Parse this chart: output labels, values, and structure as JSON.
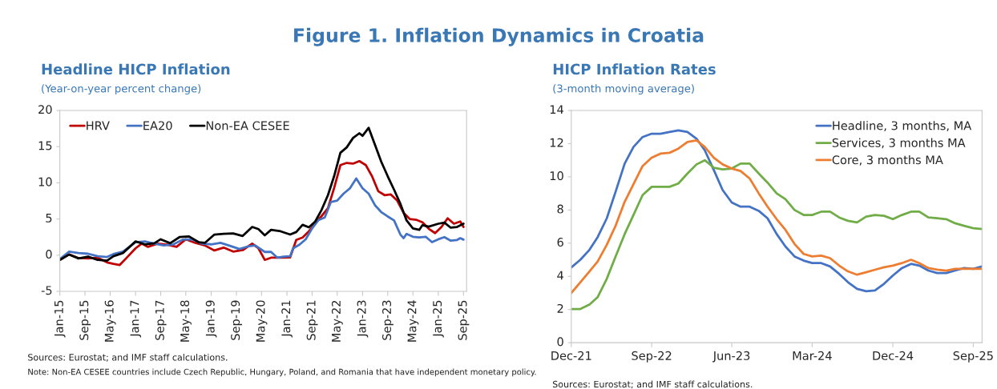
{
  "chart_data": [
    {
      "type": "other",
      "title": "Figure 1. Inflation Dynamics in Croatia"
    },
    {
      "type": "line",
      "title": "Headline HICP Inflation",
      "subtitle": "(Year-on-year percent change)",
      "ylim": [
        -5,
        20
      ],
      "yticks": [
        -5,
        0,
        5,
        10,
        15,
        20
      ],
      "xlim": [
        "2015-01",
        "2025-10"
      ],
      "xticks": [
        {
          "value": "2015-01",
          "label": "Jan-15"
        },
        {
          "value": "2015-09",
          "label": "Sep-15"
        },
        {
          "value": "2016-05",
          "label": "May-16"
        },
        {
          "value": "2017-01",
          "label": "Jan-17"
        },
        {
          "value": "2017-09",
          "label": "Sep-17"
        },
        {
          "value": "2018-05",
          "label": "May-18"
        },
        {
          "value": "2019-01",
          "label": "Jan-19"
        },
        {
          "value": "2019-09",
          "label": "Sep-19"
        },
        {
          "value": "2020-05",
          "label": "May-20"
        },
        {
          "value": "2021-01",
          "label": "Jan-21"
        },
        {
          "value": "2021-09",
          "label": "Sep-21"
        },
        {
          "value": "2022-05",
          "label": "May-22"
        },
        {
          "value": "2023-01",
          "label": "Jan-23"
        },
        {
          "value": "2023-09",
          "label": "Sep-23"
        },
        {
          "value": "2024-05",
          "label": "May-24"
        },
        {
          "value": "2025-01",
          "label": "Jan-25"
        },
        {
          "value": "2025-09",
          "label": "Sep-25"
        }
      ],
      "legend": "top left",
      "grid": false,
      "series": [
        {
          "name": "HRV",
          "color": "#c00000",
          "x": [
            "2015-01",
            "2015-04",
            "2015-07",
            "2015-10",
            "2016-01",
            "2016-04",
            "2016-06",
            "2016-08",
            "2016-10",
            "2017-01",
            "2017-03",
            "2017-05",
            "2017-08",
            "2017-11",
            "2018-02",
            "2018-05",
            "2018-08",
            "2018-11",
            "2019-02",
            "2019-05",
            "2019-08",
            "2019-11",
            "2020-02",
            "2020-04",
            "2020-06",
            "2020-08",
            "2020-11",
            "2021-02",
            "2021-04",
            "2021-06",
            "2021-08",
            "2021-10",
            "2021-12",
            "2022-02",
            "2022-04",
            "2022-06",
            "2022-08",
            "2022-10",
            "2022-12",
            "2023-02",
            "2023-04",
            "2023-06",
            "2023-08",
            "2023-10",
            "2023-12",
            "2024-02",
            "2024-04",
            "2024-06",
            "2024-08",
            "2024-10",
            "2024-12",
            "2025-02",
            "2025-04",
            "2025-06",
            "2025-08",
            "2025-09"
          ],
          "values": [
            -0.65,
            0.1,
            -0.4,
            -0.45,
            -0.35,
            -1.0,
            -1.2,
            -1.35,
            -0.45,
            0.95,
            1.6,
            1.15,
            1.6,
            1.45,
            1.15,
            2.2,
            1.7,
            1.35,
            0.65,
            1.05,
            0.5,
            0.7,
            1.6,
            0.95,
            -0.65,
            -0.35,
            -0.35,
            -0.3,
            2.1,
            2.45,
            3.3,
            4.35,
            5.4,
            6.5,
            9.25,
            12.45,
            12.75,
            12.65,
            13.0,
            12.45,
            10.95,
            8.85,
            8.3,
            8.4,
            7.55,
            5.85,
            5.0,
            4.9,
            4.55,
            3.65,
            3.05,
            3.9,
            5.1,
            4.35,
            4.65,
            3.9
          ]
        },
        {
          "name": "EA20",
          "color": "#4472c4",
          "x": [
            "2015-01",
            "2015-04",
            "2015-07",
            "2015-10",
            "2016-01",
            "2016-04",
            "2016-06",
            "2016-09",
            "2017-01",
            "2017-04",
            "2017-07",
            "2017-10",
            "2018-01",
            "2018-04",
            "2018-07",
            "2018-10",
            "2019-01",
            "2019-04",
            "2019-07",
            "2019-10",
            "2020-01",
            "2020-03",
            "2020-06",
            "2020-08",
            "2020-10",
            "2020-12",
            "2021-02",
            "2021-03",
            "2021-05",
            "2021-07",
            "2021-09",
            "2021-11",
            "2022-01",
            "2022-03",
            "2022-05",
            "2022-07",
            "2022-09",
            "2022-11",
            "2023-01",
            "2023-03",
            "2023-05",
            "2023-07",
            "2023-09",
            "2023-11",
            "2024-01",
            "2024-02",
            "2024-03",
            "2024-05",
            "2024-07",
            "2024-09",
            "2024-11",
            "2025-01",
            "2025-03",
            "2025-05",
            "2025-07",
            "2025-08",
            "2025-09"
          ],
          "values": [
            -0.55,
            0.5,
            0.3,
            0.2,
            -0.15,
            -0.25,
            0.15,
            0.5,
            1.8,
            1.9,
            1.6,
            1.35,
            1.5,
            2.15,
            2.2,
            1.6,
            1.5,
            1.7,
            1.3,
            0.85,
            1.25,
            1.35,
            0.45,
            0.45,
            -0.35,
            -0.2,
            -0.15,
            0.95,
            1.45,
            2.2,
            3.7,
            4.85,
            5.2,
            7.35,
            7.55,
            8.5,
            9.25,
            10.6,
            9.25,
            8.5,
            6.9,
            5.95,
            5.35,
            4.8,
            2.85,
            2.35,
            2.95,
            2.55,
            2.45,
            2.55,
            1.8,
            2.2,
            2.5,
            2.0,
            2.1,
            2.35,
            2.15
          ]
        },
        {
          "name": "Non-EA CESEE",
          "color": "#000000",
          "x": [
            "2015-01",
            "2015-04",
            "2015-07",
            "2015-10",
            "2016-01",
            "2016-04",
            "2016-06",
            "2016-09",
            "2017-01",
            "2017-04",
            "2017-07",
            "2017-09",
            "2017-12",
            "2018-03",
            "2018-06",
            "2018-09",
            "2018-11",
            "2019-02",
            "2019-05",
            "2019-08",
            "2019-11",
            "2020-02",
            "2020-04",
            "2020-06",
            "2020-08",
            "2020-11",
            "2021-02",
            "2021-04",
            "2021-06",
            "2021-08",
            "2021-10",
            "2021-12",
            "2022-02",
            "2022-04",
            "2022-06",
            "2022-08",
            "2022-10",
            "2022-12",
            "2023-01",
            "2023-03",
            "2023-05",
            "2023-07",
            "2023-09",
            "2023-11",
            "2024-01",
            "2024-03",
            "2024-05",
            "2024-07",
            "2024-08",
            "2024-10",
            "2025-01",
            "2025-03",
            "2025-05",
            "2025-07",
            "2025-09"
          ],
          "values": [
            -0.65,
            0.1,
            -0.45,
            -0.2,
            -0.65,
            -0.75,
            -0.15,
            0.3,
            1.9,
            1.5,
            1.65,
            2.2,
            1.65,
            2.5,
            2.6,
            1.8,
            1.7,
            2.85,
            2.95,
            3.0,
            2.65,
            3.9,
            3.6,
            2.75,
            3.5,
            3.3,
            2.85,
            3.2,
            4.2,
            3.85,
            4.65,
            6.25,
            8.3,
            10.9,
            14.15,
            14.9,
            16.2,
            16.85,
            16.5,
            17.6,
            15.25,
            12.9,
            10.9,
            9.05,
            7.1,
            4.8,
            3.7,
            3.5,
            4.15,
            3.95,
            4.35,
            4.5,
            3.8,
            3.9,
            4.35
          ]
        }
      ],
      "annotations": [
        "Sources: Eurostat; and IMF staff calculations.",
        "Note: Non-EA CESEE countries include Czech Republic, Hungary, Poland, and Romania that have independent monetary policy."
      ]
    },
    {
      "type": "line",
      "title": "HICP Inflation Rates",
      "subtitle": "(3-month moving average)",
      "ylim": [
        0,
        14
      ],
      "yticks": [
        0,
        2,
        4,
        6,
        8,
        10,
        12,
        14
      ],
      "xlim": [
        "2021-12",
        "2025-10"
      ],
      "xticks": [
        {
          "value": "2021-12",
          "label": "Dec-21"
        },
        {
          "value": "2022-09",
          "label": "Sep-22"
        },
        {
          "value": "2023-06",
          "label": "Jun-23"
        },
        {
          "value": "2024-03",
          "label": "Mar-24"
        },
        {
          "value": "2024-12",
          "label": "Dec-24"
        },
        {
          "value": "2025-09",
          "label": "Sep-25"
        }
      ],
      "legend": "top right",
      "grid": false,
      "x": [
        "2021-12",
        "2022-01",
        "2022-02",
        "2022-03",
        "2022-04",
        "2022-05",
        "2022-06",
        "2022-07",
        "2022-08",
        "2022-09",
        "2022-10",
        "2022-11",
        "2022-12",
        "2023-01",
        "2023-02",
        "2023-03",
        "2023-04",
        "2023-05",
        "2023-06",
        "2023-07",
        "2023-08",
        "2023-09",
        "2023-10",
        "2023-11",
        "2023-12",
        "2024-01",
        "2024-02",
        "2024-03",
        "2024-04",
        "2024-05",
        "2024-06",
        "2024-07",
        "2024-08",
        "2024-09",
        "2024-10",
        "2024-11",
        "2024-12",
        "2025-01",
        "2025-02",
        "2025-03",
        "2025-04",
        "2025-05",
        "2025-06",
        "2025-07",
        "2025-08",
        "2025-09",
        "2025-10"
      ],
      "series": [
        {
          "name": "Headline, 3 months, MA",
          "color": "#4472c4",
          "values": [
            4.54,
            5.0,
            5.6,
            6.37,
            7.5,
            9.1,
            10.8,
            11.8,
            12.4,
            12.6,
            12.6,
            12.7,
            12.8,
            12.7,
            12.3,
            11.6,
            10.4,
            9.2,
            8.45,
            8.2,
            8.2,
            7.95,
            7.5,
            6.55,
            5.8,
            5.2,
            4.95,
            4.8,
            4.8,
            4.6,
            4.15,
            3.65,
            3.25,
            3.1,
            3.15,
            3.55,
            4.05,
            4.5,
            4.75,
            4.65,
            4.35,
            4.2,
            4.2,
            4.35,
            4.5,
            4.45,
            4.6
          ]
        },
        {
          "name": "Services, 3 months MA",
          "color": "#70ad47",
          "values": [
            2.03,
            2.03,
            2.3,
            2.75,
            3.85,
            5.2,
            6.55,
            7.7,
            8.9,
            9.4,
            9.4,
            9.4,
            9.6,
            10.2,
            10.75,
            11.0,
            10.55,
            10.45,
            10.5,
            10.8,
            10.8,
            10.2,
            9.65,
            9.0,
            8.65,
            8.0,
            7.7,
            7.7,
            7.9,
            7.9,
            7.55,
            7.35,
            7.25,
            7.6,
            7.7,
            7.65,
            7.45,
            7.7,
            7.9,
            7.9,
            7.55,
            7.5,
            7.45,
            7.2,
            7.05,
            6.9,
            6.85
          ]
        },
        {
          "name": "Core, 3 months MA",
          "color": "#ed7d31",
          "values": [
            3.0,
            3.65,
            4.3,
            4.9,
            5.9,
            7.05,
            8.5,
            9.55,
            10.65,
            11.15,
            11.4,
            11.45,
            11.7,
            12.1,
            12.2,
            11.8,
            11.15,
            10.75,
            10.5,
            10.35,
            9.9,
            9.0,
            8.2,
            7.45,
            6.8,
            5.95,
            5.35,
            5.2,
            5.25,
            5.1,
            4.65,
            4.3,
            4.1,
            4.25,
            4.4,
            4.55,
            4.65,
            4.8,
            5.0,
            4.8,
            4.5,
            4.4,
            4.35,
            4.45,
            4.45,
            4.45,
            4.45
          ]
        }
      ],
      "annotations": [
        "Sources: Eurostat; and IMF staff calculations."
      ]
    }
  ]
}
